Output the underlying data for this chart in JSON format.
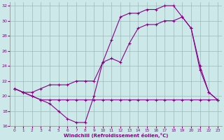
{
  "xlabel": "Windchill (Refroidissement éolien,°C)",
  "bg_color": "#cce8e8",
  "grid_color": "#99bbbb",
  "line_color": "#880088",
  "xlim_min": -0.5,
  "xlim_max": 23.5,
  "ylim_min": 16,
  "ylim_max": 32.5,
  "xticks": [
    0,
    1,
    2,
    3,
    4,
    5,
    6,
    7,
    8,
    9,
    10,
    11,
    12,
    13,
    14,
    15,
    16,
    17,
    18,
    19,
    20,
    21,
    22,
    23
  ],
  "yticks": [
    16,
    18,
    20,
    22,
    24,
    26,
    28,
    30,
    32
  ],
  "hours": [
    0,
    1,
    2,
    3,
    4,
    5,
    6,
    7,
    8,
    9,
    10,
    11,
    12,
    13,
    14,
    15,
    16,
    17,
    18,
    19,
    20,
    21,
    22,
    23
  ],
  "line1": [
    21.0,
    20.5,
    20.0,
    19.5,
    19.0,
    18.0,
    17.0,
    16.5,
    16.5,
    20.0,
    24.5,
    27.5,
    30.5,
    31.0,
    31.0,
    31.5,
    31.5,
    32.0,
    32.0,
    30.5,
    29.0,
    23.5,
    20.5,
    19.5
  ],
  "line2": [
    21.0,
    20.5,
    20.0,
    19.5,
    19.5,
    19.5,
    19.5,
    19.5,
    19.5,
    19.5,
    19.5,
    19.5,
    19.5,
    19.5,
    19.5,
    19.5,
    19.5,
    19.5,
    19.5,
    19.5,
    19.5,
    19.5,
    19.5,
    19.5
  ],
  "line3": [
    21.0,
    20.5,
    20.5,
    21.0,
    21.5,
    21.5,
    21.5,
    22.0,
    22.0,
    22.0,
    24.5,
    25.0,
    24.5,
    27.0,
    29.0,
    29.5,
    29.5,
    30.0,
    30.0,
    30.5,
    29.0,
    24.0,
    20.5,
    19.5
  ]
}
